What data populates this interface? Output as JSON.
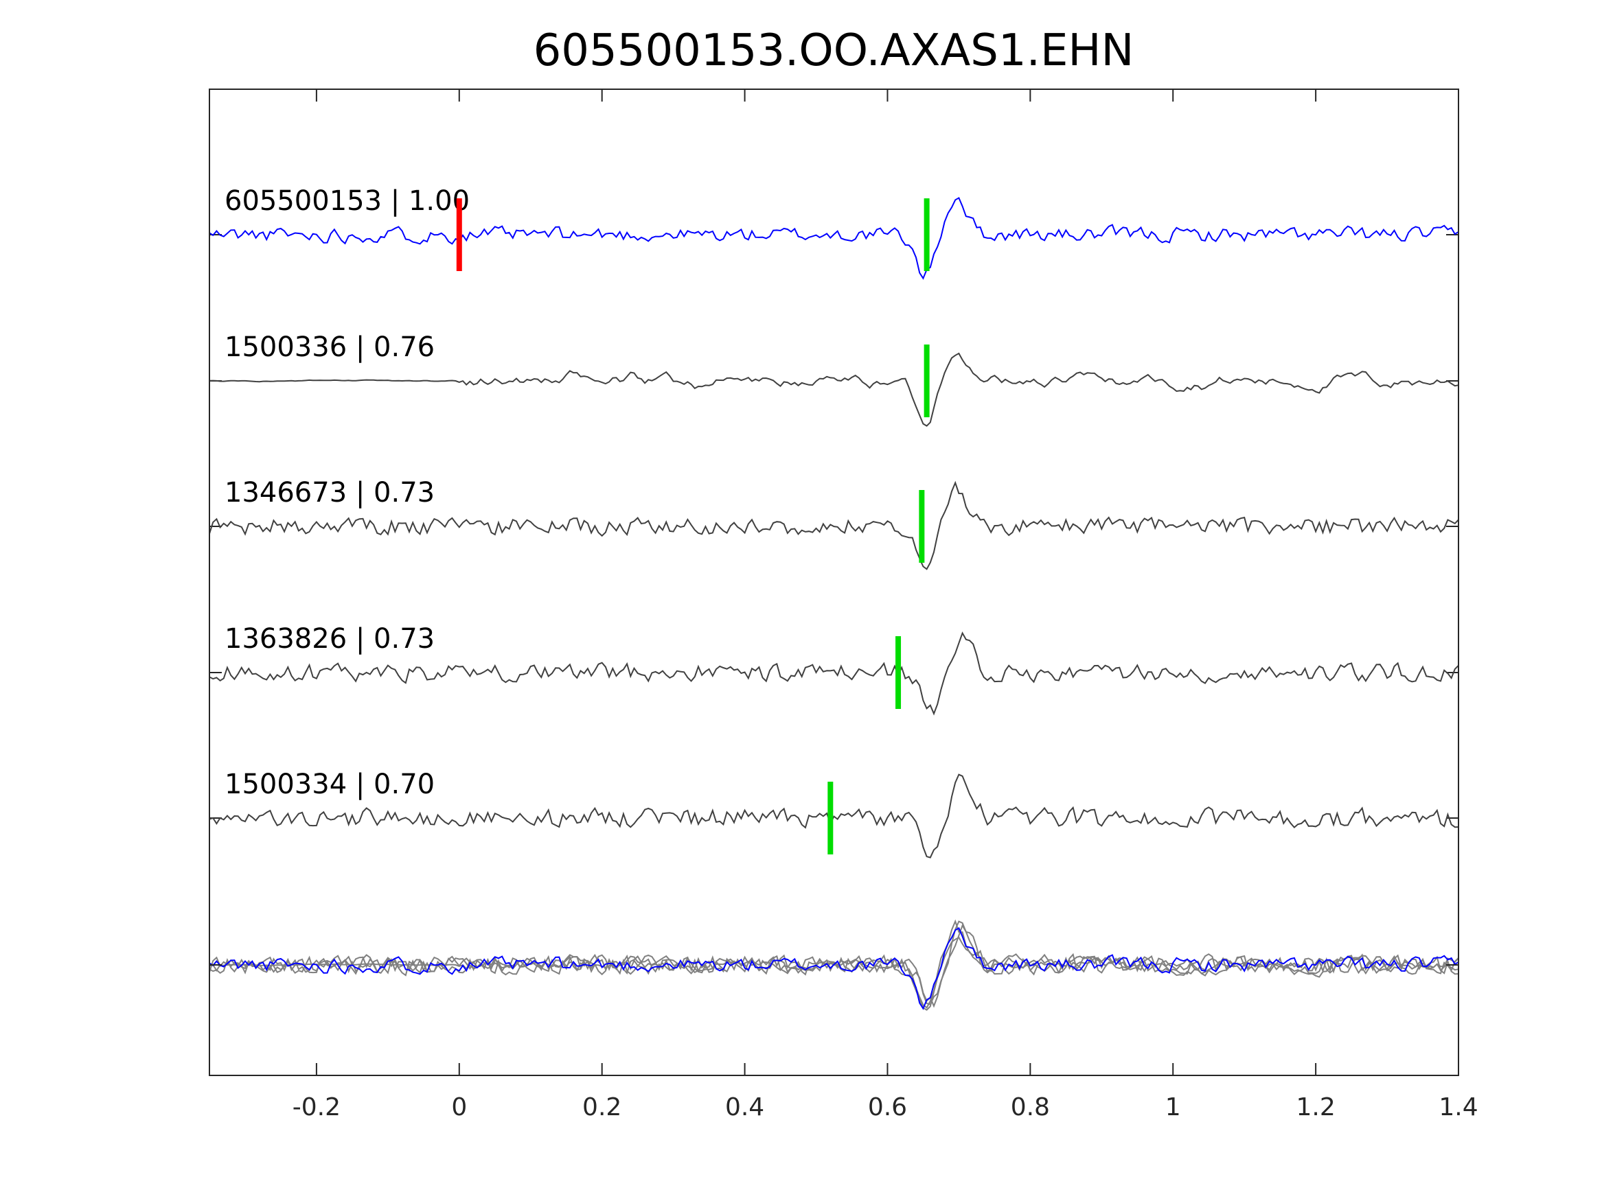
{
  "chart_data": {
    "type": "line",
    "title": "605500153.OO.AXAS1.EHN",
    "xlabel": "",
    "ylabel": "",
    "xlim": [
      -0.35,
      1.4
    ],
    "xticks": [
      -0.2,
      0,
      0.2,
      0.4,
      0.6,
      0.8,
      1,
      1.2,
      1.4
    ],
    "xtick_labels": [
      "-0.2",
      "0",
      "0.2",
      "0.4",
      "0.6",
      "0.8",
      "1",
      "1.2",
      "1.4"
    ],
    "grid": false,
    "reference_pick": {
      "time": 0.0,
      "color": "#ff0000"
    },
    "pick_color": "#00dd00",
    "traces": [
      {
        "label": "605500153 | 1.00",
        "id": "605500153",
        "cc": 1.0,
        "pick": 0.655,
        "color": "#0000ff"
      },
      {
        "label": "1500336 | 0.76",
        "id": "1500336",
        "cc": 0.76,
        "pick": 0.655,
        "color": "#404040"
      },
      {
        "label": "1346673 | 0.73",
        "id": "1346673",
        "cc": 0.73,
        "pick": 0.648,
        "color": "#404040"
      },
      {
        "label": "1363826 | 0.73",
        "id": "1363826",
        "cc": 0.73,
        "pick": 0.615,
        "color": "#404040"
      },
      {
        "label": "1500334 | 0.70",
        "id": "1500334",
        "cc": 0.7,
        "pick": 0.52,
        "color": "#404040"
      }
    ],
    "stack": {
      "main_color": "#0000ff",
      "other_color": "#808080"
    }
  }
}
